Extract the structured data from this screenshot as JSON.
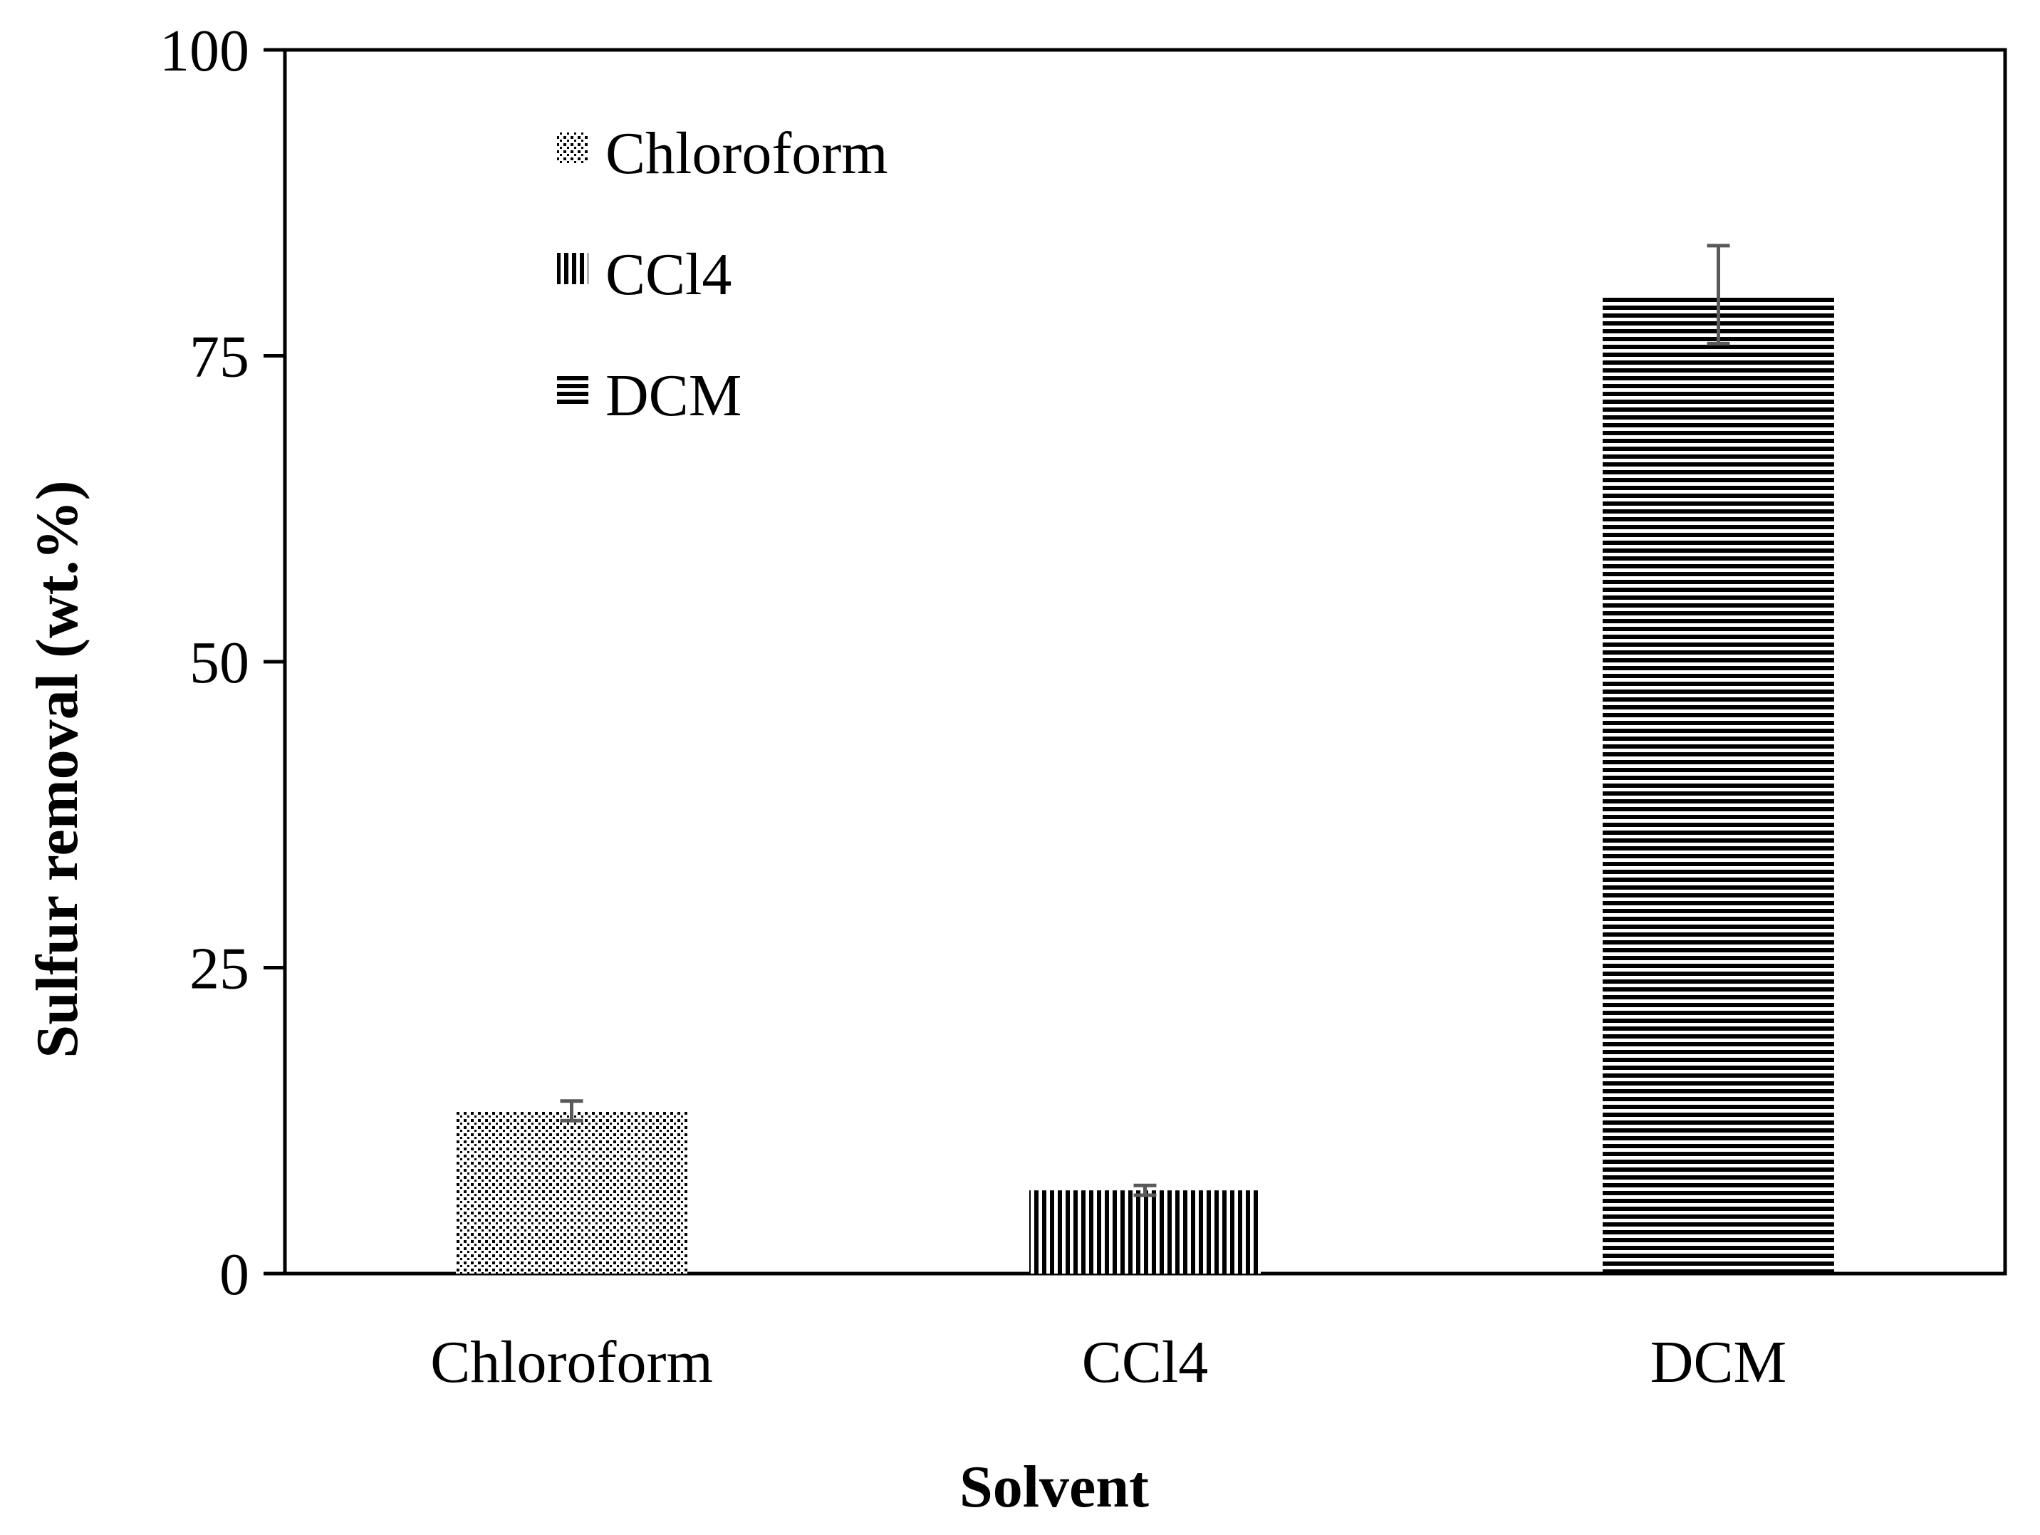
{
  "chart_data": {
    "type": "bar",
    "title": "",
    "xlabel": "Solvent",
    "ylabel": "Sulfur removal (wt.%)",
    "ylim": [
      0,
      100
    ],
    "yticks": [
      0,
      25,
      50,
      75,
      100
    ],
    "categories": [
      "Chloroform",
      "CCl4",
      "DCM"
    ],
    "values": [
      13.3,
      6.8,
      80.0
    ],
    "errors": [
      0.8,
      0.4,
      4.0
    ],
    "patterns": [
      "dots",
      "vertical-lines",
      "horizontal-lines"
    ],
    "legend": [
      "Chloroform",
      "CCl4",
      "DCM"
    ],
    "legend_position": "top-left",
    "grid": false
  },
  "colors": {
    "bar": "#000000",
    "error_bar": "#595959",
    "axis": "#000000"
  }
}
